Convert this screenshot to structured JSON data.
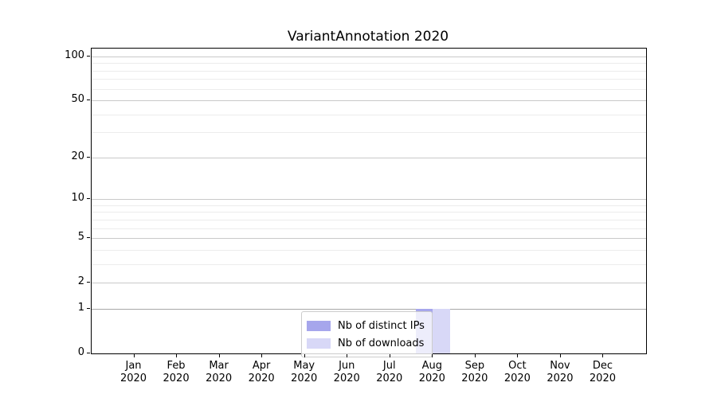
{
  "chart_data": {
    "type": "bar",
    "title": "VariantAnnotation 2020",
    "categories": [
      "Jan 2020",
      "Feb 2020",
      "Mar 2020",
      "Apr 2020",
      "May 2020",
      "Jun 2020",
      "Jul 2020",
      "Aug 2020",
      "Sep 2020",
      "Oct 2020",
      "Nov 2020",
      "Dec 2020"
    ],
    "series": [
      {
        "name": "Nb of distinct IPs",
        "color": "#a6a6ec",
        "values": [
          0,
          0,
          0,
          0,
          0,
          0,
          0,
          1,
          0,
          0,
          0,
          0
        ]
      },
      {
        "name": "Nb of downloads",
        "color": "#d8d8f7",
        "values": [
          0,
          0,
          0,
          0,
          0,
          0,
          0,
          1,
          0,
          0,
          0,
          0
        ]
      }
    ],
    "yticks": [
      0,
      1,
      2,
      5,
      10,
      20,
      50,
      100
    ],
    "minor_yticks": [
      3,
      4,
      6,
      7,
      8,
      9,
      30,
      40,
      60,
      70,
      80,
      90
    ],
    "emphasized_ytick": 1,
    "scale": "log1p",
    "ylim": [
      0,
      110
    ],
    "grid": true,
    "legend": {
      "position": "lower center",
      "labels": [
        "Nb of distinct IPs",
        "Nb of downloads"
      ]
    },
    "colors": {
      "grid_major": "#c9c9c9",
      "grid_minor": "#ececec",
      "grid_emphasis": "#a8a8a8",
      "axis": "#000000",
      "text": "#000000",
      "legend_border": "#cccccc"
    }
  }
}
